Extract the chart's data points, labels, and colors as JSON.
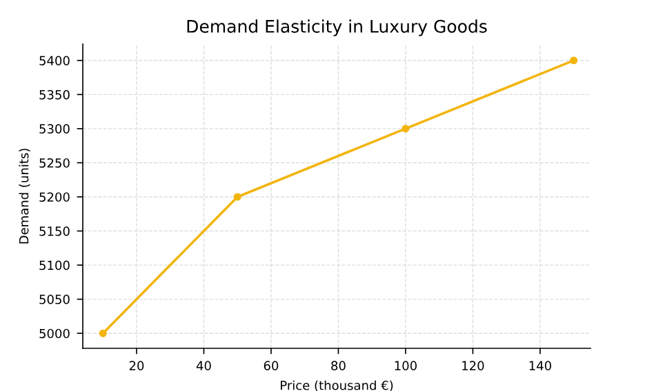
{
  "chart_data": {
    "type": "line",
    "title": "Demand Elasticity in Luxury Goods",
    "xlabel": "Price (thousand €)",
    "ylabel": "Demand (units)",
    "x": [
      10,
      50,
      100,
      150
    ],
    "series": [
      {
        "color": "#f2b50f",
        "values": [
          5000,
          5200,
          5300,
          5400
        ]
      }
    ],
    "xlim": [
      4,
      155
    ],
    "xticks": [
      20,
      40,
      60,
      80,
      100,
      120,
      140
    ],
    "ylim": [
      4978,
      5424
    ],
    "yticks": [
      5000,
      5050,
      5100,
      5150,
      5200,
      5250,
      5300,
      5350,
      5400
    ],
    "grid": true,
    "marker": "circle",
    "line_style": "solid"
  }
}
